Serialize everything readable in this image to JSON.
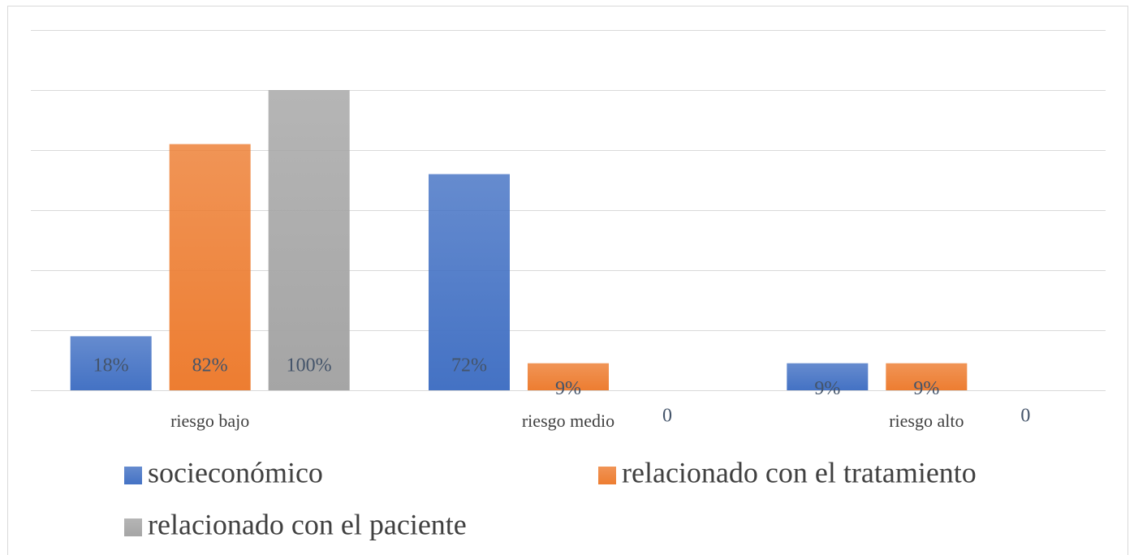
{
  "chart_data": {
    "type": "bar",
    "categories": [
      "riesgo bajo",
      "riesgo medio",
      "riesgo alto"
    ],
    "series": [
      {
        "name": "socieconómico",
        "color": "#4472c4",
        "values": [
          18,
          72,
          9
        ],
        "value_labels": [
          "18%",
          "72%",
          "9%"
        ]
      },
      {
        "name": "relacionado con el tratamiento",
        "color": "#ed7d31",
        "values": [
          82,
          9,
          9
        ],
        "value_labels": [
          "82%",
          "9%",
          "9%"
        ]
      },
      {
        "name": "relacionado con el paciente",
        "color": "#a5a5a5",
        "values": [
          100,
          0,
          0
        ],
        "value_labels": [
          "100%",
          "0",
          "0"
        ]
      }
    ],
    "ylim": [
      0,
      120
    ],
    "yticks": [
      0,
      20,
      40,
      60,
      80,
      100,
      120
    ],
    "grid": true,
    "legend": "bottom"
  }
}
